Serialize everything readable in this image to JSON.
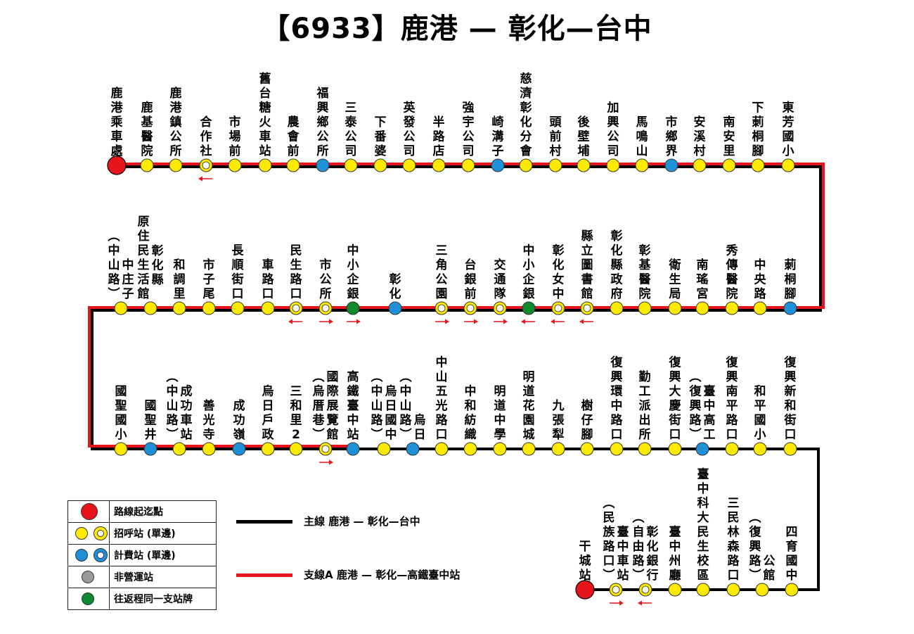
{
  "title": "【6933】鹿港 — 彰化—台中",
  "colors": {
    "main_line": "#000000",
    "branch_line": "#e8141b",
    "terminal": "#e8141b",
    "call_stop": "#ffea00",
    "fare_stop": "#1e90d8",
    "not_in_service": "#9a9a9a",
    "shared_pole": "#0f8a2e",
    "arrow": "#e8141b"
  },
  "rows": [
    {
      "stops": [
        {
          "label": "鹿港乘車處",
          "type": "terminal"
        },
        {
          "label": "鹿基醫院",
          "type": "call"
        },
        {
          "label": "鹿港鎮公所",
          "type": "call"
        },
        {
          "label": "合作社",
          "type": "call_single",
          "arrow": "left"
        },
        {
          "label": "市場前",
          "type": "call"
        },
        {
          "label": "舊台糖火車站",
          "type": "call"
        },
        {
          "label": "農會前",
          "type": "call"
        },
        {
          "label": "福興鄉公所",
          "type": "fare"
        },
        {
          "label": "三泰公司",
          "type": "call"
        },
        {
          "label": "下番婆",
          "type": "call"
        },
        {
          "label": "英發公司",
          "type": "call"
        },
        {
          "label": "半路店",
          "type": "call"
        },
        {
          "label": "強宇公司",
          "type": "call"
        },
        {
          "label": "崎溝子",
          "type": "fare"
        },
        {
          "label": "慈濟彰化分會",
          "type": "call"
        },
        {
          "label": "頭前村",
          "type": "call"
        },
        {
          "label": "後壁埔",
          "type": "call"
        },
        {
          "label": "加興公司",
          "type": "call"
        },
        {
          "label": "馬鳴山",
          "type": "call"
        },
        {
          "label": "市鄉界",
          "type": "fare"
        },
        {
          "label": "安溪村",
          "type": "call"
        },
        {
          "label": "南安里",
          "type": "call"
        },
        {
          "label": "下莿桐腳",
          "type": "call"
        },
        {
          "label": "東芳國小",
          "type": "call"
        }
      ]
    },
    {
      "stops": [
        {
          "label": "中庄子",
          "sub": "(中山路)",
          "type": "call"
        },
        {
          "label": "原住民生活館",
          "sub2": "彰化縣",
          "type": "call"
        },
        {
          "label": "和調里",
          "type": "call"
        },
        {
          "label": "市子尾",
          "type": "call"
        },
        {
          "label": "長順街口",
          "type": "call"
        },
        {
          "label": "車路口",
          "type": "call"
        },
        {
          "label": "民生路口",
          "type": "call_single",
          "arrow": "left"
        },
        {
          "label": "市公所",
          "type": "call_single",
          "arrow": "right"
        },
        {
          "label": "中小企銀",
          "type": "shared",
          "arrow": "right"
        },
        {
          "label": "彰化",
          "type": "fare"
        },
        {
          "label": "三角公園",
          "type": "call_single",
          "arrow": "right"
        },
        {
          "label": "台銀前",
          "type": "call_single",
          "arrow": "right"
        },
        {
          "label": "交通隊",
          "type": "call_single",
          "arrow": "right"
        },
        {
          "label": "中小企銀",
          "type": "shared",
          "arrow": "left"
        },
        {
          "label": "彰化女中",
          "type": "call_single",
          "arrow": "left"
        },
        {
          "label": "縣立圖書館",
          "type": "call_single",
          "arrow": "left"
        },
        {
          "label": "彰化縣政府",
          "type": "call"
        },
        {
          "label": "彰基醫院",
          "type": "call"
        },
        {
          "label": "衛生局",
          "type": "call"
        },
        {
          "label": "南瑤宮",
          "type": "call"
        },
        {
          "label": "秀傳醫院",
          "type": "call"
        },
        {
          "label": "中央路",
          "type": "call"
        },
        {
          "label": "莿桐腳",
          "type": "fare"
        }
      ]
    },
    {
      "stops": [
        {
          "label": "國聖國小",
          "type": "call"
        },
        {
          "label": "國聖井",
          "type": "fare"
        },
        {
          "label": "成功車站",
          "sub": "(中山路)",
          "type": "call"
        },
        {
          "label": "善光寺",
          "type": "call"
        },
        {
          "label": "成功嶺",
          "type": "fare"
        },
        {
          "label": "烏日戶政",
          "type": "call"
        },
        {
          "label": "三和里2",
          "type": "call"
        },
        {
          "label": "國際展覽館",
          "sub": "(烏厝巷)",
          "type": "call_single",
          "arrow": "right"
        },
        {
          "label": "高鐵臺中站",
          "type": "fare"
        },
        {
          "label": "烏日國中",
          "sub": "(中山路)",
          "type": "call"
        },
        {
          "label": "烏日",
          "sub": "(中山路)",
          "type": "fare"
        },
        {
          "label": "中山五光路口",
          "type": "call"
        },
        {
          "label": "中和紡織",
          "type": "call"
        },
        {
          "label": "明道中學",
          "type": "call"
        },
        {
          "label": "明道花園城",
          "type": "call"
        },
        {
          "label": "九張犁",
          "type": "call"
        },
        {
          "label": "樹仔腳",
          "type": "call"
        },
        {
          "label": "復興環中路口",
          "type": "call"
        },
        {
          "label": "勤工派出所",
          "type": "call"
        },
        {
          "label": "復興大慶街口",
          "type": "call"
        },
        {
          "label": "臺中高工",
          "sub": "(復興路)",
          "type": "fare"
        },
        {
          "label": "復興南平路口",
          "type": "call"
        },
        {
          "label": "和平國小",
          "type": "call"
        },
        {
          "label": "復興新和街口",
          "type": "call"
        }
      ]
    },
    {
      "stops": [
        {
          "label": "干城站",
          "type": "terminal"
        },
        {
          "label": "臺中車站",
          "sub": "(民族路口)",
          "type": "call_single",
          "arrow": "right"
        },
        {
          "label": "彰化銀行",
          "sub": "(自由路)",
          "type": "call_single",
          "arrow": "left"
        },
        {
          "label": "臺中州廳",
          "type": "call"
        },
        {
          "label": "臺中科大民生校區",
          "type": "call"
        },
        {
          "label": "三民林森路口",
          "type": "call"
        },
        {
          "label": "公館",
          "sub": "(復興路)",
          "type": "call"
        },
        {
          "label": "四育國中",
          "type": "call"
        }
      ]
    }
  ],
  "legend": [
    {
      "label": "路線起迄點",
      "icon": "terminal"
    },
    {
      "label": "招呼站 (單邊)",
      "icon": "call"
    },
    {
      "label": "計費站 (單邊)",
      "icon": "fare"
    },
    {
      "label": "非營運站",
      "icon": "not_in_service"
    },
    {
      "label": "往返程同一支站牌",
      "icon": "shared"
    }
  ],
  "lines": [
    {
      "label": "主線  鹿港 — 彰化—台中",
      "color": "#000000"
    },
    {
      "label": "支線A  鹿港 — 彰化—高鐵臺中站",
      "color": "#e8141b"
    }
  ]
}
